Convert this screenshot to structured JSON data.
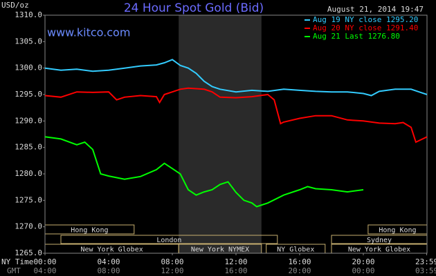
{
  "chart_data": {
    "type": "line",
    "title": "24 Hour Spot Gold (Bid)",
    "subtitle": "August 21, 2014 19:47",
    "y_label": "USD/oz",
    "watermark": "www.kitco.com",
    "x_label": "NY Time",
    "x2_label": "GMT",
    "xlim": [
      0,
      24
    ],
    "ylim": [
      1265,
      1310
    ],
    "yticks": [
      {
        "value": 1265,
        "label": "1265.0"
      },
      {
        "value": 1270,
        "label": "1270.0"
      },
      {
        "value": 1275,
        "label": "1275.0"
      },
      {
        "value": 1280,
        "label": "1280.0"
      },
      {
        "value": 1285,
        "label": "1285.0"
      },
      {
        "value": 1290,
        "label": "1290.0"
      },
      {
        "value": 1295,
        "label": "1295.0"
      },
      {
        "value": 1300,
        "label": "1300.0"
      },
      {
        "value": 1305,
        "label": "1305.0"
      },
      {
        "value": 1310,
        "label": "1310.0"
      }
    ],
    "xticks": [
      {
        "value": 0,
        "label": "00:00"
      },
      {
        "value": 4,
        "label": "04:00"
      },
      {
        "value": 8,
        "label": "08:00"
      },
      {
        "value": 12,
        "label": "12:00"
      },
      {
        "value": 16,
        "label": "16:00"
      },
      {
        "value": 20,
        "label": "20:00"
      },
      {
        "value": 23.98,
        "label": "23:59"
      }
    ],
    "x2ticks": [
      {
        "value": 0,
        "label": "04:00"
      },
      {
        "value": 4,
        "label": "08:00"
      },
      {
        "value": 8,
        "label": "12:00"
      },
      {
        "value": 12,
        "label": "16:00"
      },
      {
        "value": 16,
        "label": "20:00"
      },
      {
        "value": 20,
        "label": "00:00"
      },
      {
        "value": 23.98,
        "label": "03:59"
      }
    ],
    "highlight": [
      8.4,
      13.6
    ],
    "sessions": [
      {
        "label": "Hong Kong",
        "row": 0,
        "range": [
          0,
          5.6
        ]
      },
      {
        "label": "Hong Kong",
        "row": 0,
        "range": [
          20.3,
          24
        ]
      },
      {
        "label": "London",
        "row": 1,
        "range": [
          1,
          14.6
        ]
      },
      {
        "label": "Sydney",
        "row": 1,
        "range": [
          18,
          24
        ]
      },
      {
        "label": "New York Globex",
        "row": 2,
        "range": [
          0,
          8.4
        ]
      },
      {
        "label": "New York NYMEX",
        "row": 2,
        "range": [
          8.4,
          13.6
        ]
      },
      {
        "label": "NY Globex",
        "row": 2,
        "range": [
          13.9,
          17.6
        ]
      },
      {
        "label": "New York Globex",
        "row": 2,
        "range": [
          18,
          24
        ]
      }
    ],
    "series": [
      {
        "name": "Aug 19 NY close 1295.20",
        "color": "#33ccff",
        "x": [
          0,
          1,
          2,
          3,
          4,
          5,
          6,
          7,
          7.5,
          8,
          8.5,
          9,
          9.5,
          10,
          10.5,
          11,
          12,
          13,
          14,
          15,
          16,
          17,
          18,
          19,
          20,
          20.5,
          21,
          22,
          23,
          23.5,
          24
        ],
        "values": [
          1300,
          1299.6,
          1299.8,
          1299.4,
          1299.6,
          1300,
          1300.4,
          1300.6,
          1301,
          1301.6,
          1300.5,
          1300,
          1299,
          1297.5,
          1296.5,
          1296,
          1295.5,
          1295.8,
          1295.6,
          1296,
          1295.8,
          1295.6,
          1295.5,
          1295.5,
          1295.2,
          1294.8,
          1295.6,
          1296,
          1296,
          1295.5,
          1295
        ]
      },
      {
        "name": "Aug 20 NY close 1291.40",
        "color": "#ff0000",
        "x": [
          0,
          1,
          2,
          3,
          4,
          4.5,
          5,
          6,
          7,
          7.2,
          7.5,
          8,
          8.5,
          9,
          10,
          10.5,
          11,
          12,
          13,
          14,
          14.4,
          14.8,
          15,
          16,
          17,
          18,
          19,
          20,
          21,
          22,
          22.5,
          23,
          23.3,
          24
        ],
        "values": [
          1294.8,
          1294.5,
          1295.5,
          1295.4,
          1295.5,
          1294,
          1294.5,
          1294.8,
          1294.6,
          1293.5,
          1295,
          1295.5,
          1296,
          1296.2,
          1296,
          1295.5,
          1294.5,
          1294.4,
          1294.6,
          1295,
          1294,
          1289.5,
          1289.8,
          1290.5,
          1291,
          1291,
          1290.2,
          1290,
          1289.6,
          1289.5,
          1289.7,
          1288.8,
          1286,
          1287
        ]
      },
      {
        "name": "Aug 21 Last 1276.80",
        "color": "#00ff00",
        "x": [
          0,
          1,
          2,
          2.5,
          3,
          3.5,
          4,
          5,
          6,
          7,
          7.5,
          8,
          8.5,
          9,
          9.5,
          10,
          10.5,
          11,
          11.5,
          12,
          12.5,
          13,
          13.3,
          14,
          15,
          16,
          16.5,
          17,
          18,
          19,
          20
        ],
        "values": [
          1287,
          1286.6,
          1285.5,
          1286,
          1284.6,
          1280,
          1279.6,
          1279,
          1279.5,
          1280.8,
          1282,
          1281,
          1280,
          1277,
          1276,
          1276.6,
          1277,
          1278,
          1278.5,
          1276.5,
          1275,
          1274.5,
          1273.8,
          1274.5,
          1276,
          1277,
          1277.6,
          1277.2,
          1277,
          1276.6,
          1277
        ]
      }
    ]
  }
}
